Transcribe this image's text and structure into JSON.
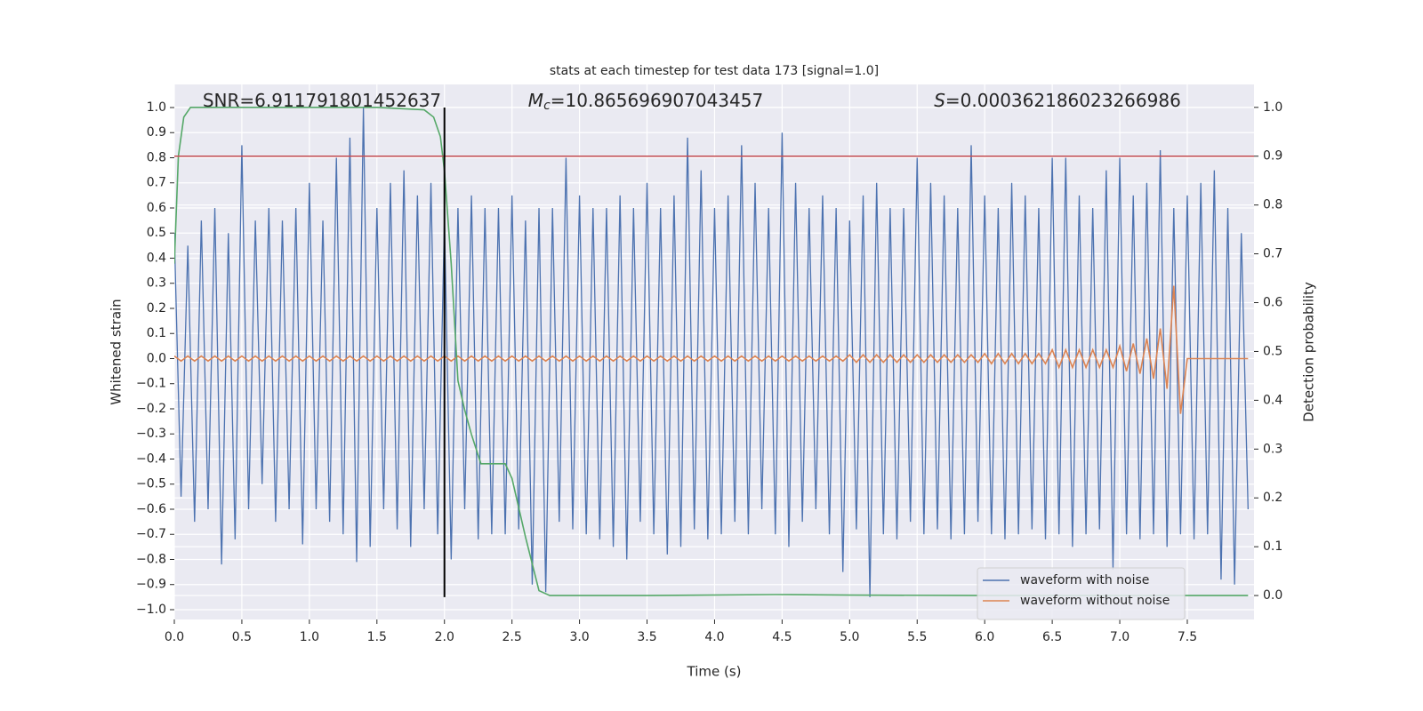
{
  "chart_data": {
    "type": "line",
    "title": "stats at each timestep for test data 173 [signal=1.0]",
    "xlabel": "Time (s)",
    "ylabel": "Whitened strain",
    "y2label": "Detection probability",
    "annotations": [
      {
        "text": "SNR=6.911791801452637"
      },
      {
        "symbol": "M",
        "subscript": "c",
        "text": "=10.865696907043457"
      },
      {
        "symbol": "S",
        "text": "=0.000362186023266986"
      }
    ],
    "x": [
      0,
      0.05,
      0.1,
      0.15,
      0.2,
      0.25,
      0.3,
      0.35,
      0.4,
      0.45,
      0.5,
      0.55,
      0.6,
      0.65,
      0.7,
      0.75,
      0.8,
      0.85,
      0.9,
      0.95,
      1.0,
      1.05,
      1.1,
      1.15,
      1.2,
      1.25,
      1.3,
      1.35,
      1.4,
      1.45,
      1.5,
      1.55,
      1.6,
      1.65,
      1.7,
      1.75,
      1.8,
      1.85,
      1.9,
      1.95,
      2.0,
      2.05,
      2.1,
      2.15,
      2.2,
      2.25,
      2.3,
      2.35,
      2.4,
      2.45,
      2.5,
      2.55,
      2.6,
      2.65,
      2.7,
      2.75,
      2.8,
      2.85,
      2.9,
      2.95,
      3.0,
      3.05,
      3.1,
      3.15,
      3.2,
      3.25,
      3.3,
      3.35,
      3.4,
      3.45,
      3.5,
      3.55,
      3.6,
      3.65,
      3.7,
      3.75,
      3.8,
      3.85,
      3.9,
      3.95,
      4.0,
      4.05,
      4.1,
      4.15,
      4.2,
      4.25,
      4.3,
      4.35,
      4.4,
      4.45,
      4.5,
      4.55,
      4.6,
      4.65,
      4.7,
      4.75,
      4.8,
      4.85,
      4.9,
      4.95,
      5.0,
      5.05,
      5.1,
      5.15,
      5.2,
      5.25,
      5.3,
      5.35,
      5.4,
      5.45,
      5.5,
      5.55,
      5.6,
      5.65,
      5.7,
      5.75,
      5.8,
      5.85,
      5.9,
      5.95,
      6.0,
      6.05,
      6.1,
      6.15,
      6.2,
      6.25,
      6.3,
      6.35,
      6.4,
      6.45,
      6.5,
      6.55,
      6.6,
      6.65,
      6.7,
      6.75,
      6.8,
      6.85,
      6.9,
      6.95,
      7.0,
      7.05,
      7.1,
      7.15,
      7.2,
      7.25,
      7.3,
      7.35,
      7.4,
      7.45,
      7.5,
      7.55,
      7.6,
      7.65,
      7.7,
      7.75,
      7.8,
      7.85,
      7.9,
      7.95
    ],
    "series": [
      {
        "name": "waveform with noise",
        "color": "#4c72b0",
        "values": [
          0.5,
          -0.55,
          0.45,
          -0.65,
          0.55,
          -0.6,
          0.6,
          -0.82,
          0.5,
          -0.72,
          0.85,
          -0.6,
          0.55,
          -0.5,
          0.6,
          -0.65,
          0.55,
          -0.6,
          0.6,
          -0.74,
          0.7,
          -0.6,
          0.55,
          -0.65,
          0.8,
          -0.7,
          0.88,
          -0.81,
          1.0,
          -0.75,
          0.6,
          -0.6,
          0.7,
          -0.68,
          0.75,
          -0.75,
          0.65,
          -0.6,
          0.7,
          -0.7,
          0.55,
          -0.8,
          0.6,
          -0.6,
          0.65,
          -0.72,
          0.6,
          -0.7,
          0.6,
          -0.7,
          0.65,
          -0.68,
          0.55,
          -0.9,
          0.6,
          -0.93,
          0.6,
          -0.65,
          0.8,
          -0.68,
          0.65,
          -0.7,
          0.6,
          -0.72,
          0.6,
          -0.75,
          0.65,
          -0.8,
          0.6,
          -0.65,
          0.7,
          -0.7,
          0.6,
          -0.78,
          0.65,
          -0.75,
          0.88,
          -0.68,
          0.75,
          -0.72,
          0.6,
          -0.7,
          0.65,
          -0.65,
          0.85,
          -0.7,
          0.7,
          -0.6,
          0.6,
          -0.7,
          0.9,
          -0.75,
          0.7,
          -0.65,
          0.6,
          -0.6,
          0.65,
          -0.7,
          0.6,
          -0.85,
          0.55,
          -0.68,
          0.65,
          -0.95,
          0.7,
          -0.7,
          0.6,
          -0.72,
          0.6,
          -0.65,
          0.8,
          -0.7,
          0.7,
          -0.68,
          0.65,
          -0.72,
          0.6,
          -0.7,
          0.85,
          -0.65,
          0.65,
          -0.7,
          0.6,
          -0.72,
          0.7,
          -0.7,
          0.65,
          -0.68,
          0.6,
          -0.72,
          0.8,
          -0.7,
          0.8,
          -0.75,
          0.65,
          -0.7,
          0.6,
          -0.68,
          0.75,
          -0.84,
          0.8,
          -0.7,
          0.65,
          -0.72,
          0.7,
          -0.7,
          0.83,
          -0.75,
          0.6,
          -0.7,
          0.65,
          -0.72,
          0.7,
          -0.7,
          0.75,
          -0.88,
          0.6,
          -0.9,
          0.5,
          -0.6
        ]
      },
      {
        "name": "waveform without noise",
        "color": "#dd8452",
        "values": [
          0.01,
          -0.01,
          0.01,
          -0.01,
          0.01,
          -0.01,
          0.01,
          -0.01,
          0.01,
          -0.01,
          0.01,
          -0.01,
          0.01,
          -0.01,
          0.01,
          -0.01,
          0.01,
          -0.01,
          0.01,
          -0.01,
          0.01,
          -0.01,
          0.01,
          -0.01,
          0.01,
          -0.01,
          0.01,
          -0.01,
          0.01,
          -0.01,
          0.01,
          -0.01,
          0.01,
          -0.01,
          0.01,
          -0.01,
          0.01,
          -0.01,
          0.01,
          -0.01,
          0.01,
          -0.01,
          0.01,
          -0.01,
          0.01,
          -0.01,
          0.01,
          -0.01,
          0.01,
          -0.01,
          0.01,
          -0.01,
          0.01,
          -0.01,
          0.01,
          -0.01,
          0.01,
          -0.01,
          0.01,
          -0.01,
          0.01,
          -0.01,
          0.01,
          -0.01,
          0.01,
          -0.01,
          0.01,
          -0.01,
          0.01,
          -0.01,
          0.01,
          -0.01,
          0.01,
          -0.01,
          0.01,
          -0.01,
          0.01,
          -0.01,
          0.01,
          -0.01,
          0.01,
          -0.01,
          0.01,
          -0.01,
          0.01,
          -0.01,
          0.01,
          -0.01,
          0.01,
          -0.01,
          0.01,
          -0.01,
          0.01,
          -0.01,
          0.01,
          -0.01,
          0.01,
          -0.01,
          0.01,
          -0.01,
          0.015,
          -0.015,
          0.015,
          -0.015,
          0.015,
          -0.015,
          0.015,
          -0.015,
          0.015,
          -0.015,
          0.015,
          -0.015,
          0.015,
          -0.015,
          0.015,
          -0.015,
          0.015,
          -0.015,
          0.015,
          -0.015,
          0.02,
          -0.02,
          0.02,
          -0.02,
          0.02,
          -0.02,
          0.02,
          -0.02,
          0.02,
          -0.02,
          0.035,
          -0.035,
          0.035,
          -0.035,
          0.035,
          -0.035,
          0.035,
          -0.035,
          0.035,
          -0.035,
          0.05,
          -0.05,
          0.06,
          -0.06,
          0.08,
          -0.08,
          0.12,
          -0.12,
          0.29,
          -0.22,
          0,
          0,
          0,
          0,
          0,
          0,
          0,
          0,
          0,
          0
        ]
      },
      {
        "color": "#55a868",
        "axis": "y2",
        "x": [
          0,
          0.03,
          0.07,
          0.12,
          0.5,
          1.0,
          1.5,
          1.85,
          1.92,
          1.97,
          2.0,
          2.05,
          2.1,
          2.15,
          2.2,
          2.27,
          2.45,
          2.5,
          2.6,
          2.7,
          2.78,
          3.5,
          4.45,
          5.0,
          6.0,
          7.0,
          7.95
        ],
        "values": [
          0.68,
          0.9,
          0.98,
          1.0,
          1.0,
          1.0,
          1.0,
          0.995,
          0.98,
          0.94,
          0.87,
          0.68,
          0.44,
          0.38,
          0.33,
          0.27,
          0.27,
          0.24,
          0.12,
          0.01,
          0.0,
          0.0,
          0.002,
          0.001,
          0.0,
          0.0,
          0.0
        ]
      }
    ],
    "hlines": [
      {
        "value": 0.9,
        "axis": "y2",
        "color": "#c44e52"
      }
    ],
    "vlines": [
      {
        "x": 2.0,
        "y": [
          -0.95,
          1.0
        ],
        "color": "#000000"
      }
    ],
    "xlim": [
      0,
      7.994
    ],
    "ylim": [
      -1.039,
      1.092
    ],
    "y2lim": [
      -0.049,
      1.047
    ],
    "xticks": [
      {
        "value": 0,
        "label": "0.0"
      },
      {
        "value": 0.5,
        "label": "0.5"
      },
      {
        "value": 1,
        "label": "1.0"
      },
      {
        "value": 1.5,
        "label": "1.5"
      },
      {
        "value": 2,
        "label": "2.0"
      },
      {
        "value": 2.5,
        "label": "2.5"
      },
      {
        "value": 3,
        "label": "3.0"
      },
      {
        "value": 3.5,
        "label": "3.5"
      },
      {
        "value": 4,
        "label": "4.0"
      },
      {
        "value": 4.5,
        "label": "4.5"
      },
      {
        "value": 5,
        "label": "5.0"
      },
      {
        "value": 5.5,
        "label": "5.5"
      },
      {
        "value": 6,
        "label": "6.0"
      },
      {
        "value": 6.5,
        "label": "6.5"
      },
      {
        "value": 7,
        "label": "7.0"
      },
      {
        "value": 7.5,
        "label": "7.5"
      }
    ],
    "yticks": [
      {
        "value": -1,
        "label": "−1.0"
      },
      {
        "value": -0.9,
        "label": "−0.9"
      },
      {
        "value": -0.8,
        "label": "−0.8"
      },
      {
        "value": -0.7,
        "label": "−0.7"
      },
      {
        "value": -0.6,
        "label": "−0.6"
      },
      {
        "value": -0.5,
        "label": "−0.5"
      },
      {
        "value": -0.4,
        "label": "−0.4"
      },
      {
        "value": -0.3,
        "label": "−0.3"
      },
      {
        "value": -0.2,
        "label": "−0.2"
      },
      {
        "value": -0.1,
        "label": "−0.1"
      },
      {
        "value": 0,
        "label": "0.0"
      },
      {
        "value": 0.1,
        "label": "0.1"
      },
      {
        "value": 0.2,
        "label": "0.2"
      },
      {
        "value": 0.3,
        "label": "0.3"
      },
      {
        "value": 0.4,
        "label": "0.4"
      },
      {
        "value": 0.5,
        "label": "0.5"
      },
      {
        "value": 0.6,
        "label": "0.6"
      },
      {
        "value": 0.7,
        "label": "0.7"
      },
      {
        "value": 0.8,
        "label": "0.8"
      },
      {
        "value": 0.9,
        "label": "0.9"
      },
      {
        "value": 1,
        "label": "1.0"
      }
    ],
    "y2ticks": [
      {
        "value": 0,
        "label": "0.0"
      },
      {
        "value": 0.1,
        "label": "0.1"
      },
      {
        "value": 0.2,
        "label": "0.2"
      },
      {
        "value": 0.3,
        "label": "0.3"
      },
      {
        "value": 0.4,
        "label": "0.4"
      },
      {
        "value": 0.5,
        "label": "0.5"
      },
      {
        "value": 0.6,
        "label": "0.6"
      },
      {
        "value": 0.7,
        "label": "0.7"
      },
      {
        "value": 0.8,
        "label": "0.8"
      },
      {
        "value": 0.9,
        "label": "0.9"
      },
      {
        "value": 1,
        "label": "1.0"
      }
    ],
    "grid": true,
    "background": "#eaeaf2",
    "legend": "lower right"
  }
}
